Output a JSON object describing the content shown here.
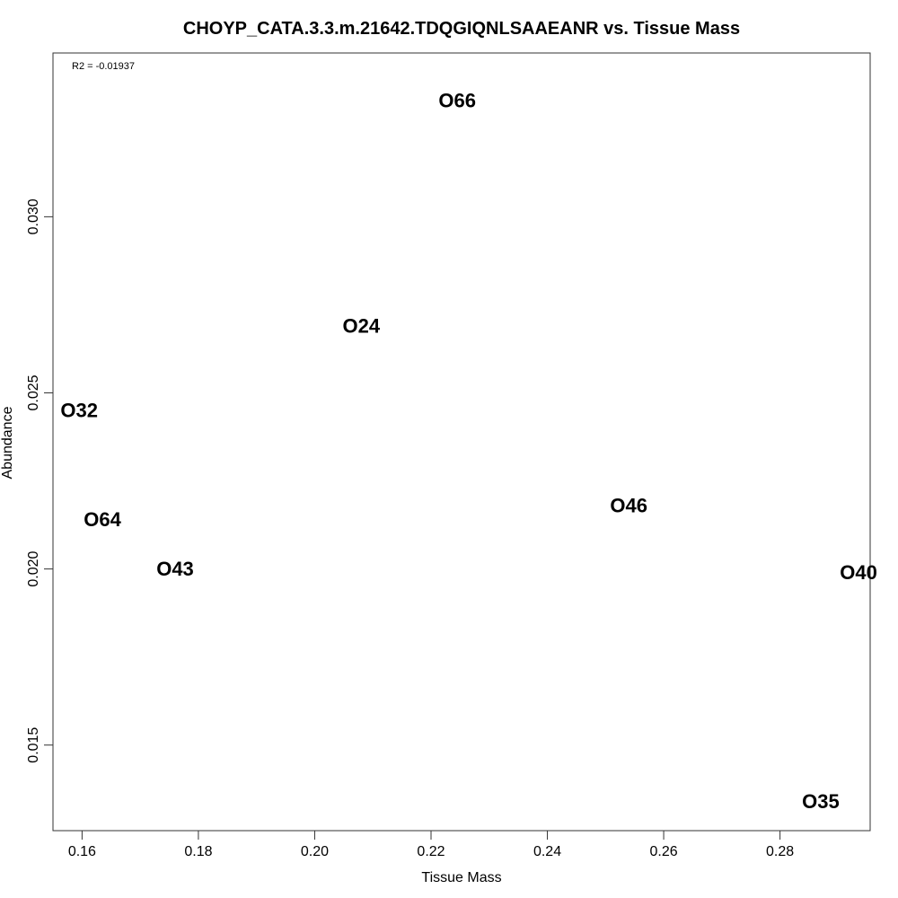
{
  "chart_data": {
    "type": "scatter",
    "title": "CHOYP_CATA.3.3.m.21642.TDQGIQNLSAAEANR vs. Tissue Mass",
    "xlabel": "Tissue Mass",
    "ylabel": "Abundance",
    "annotation": "R2 = -0.01937",
    "xlim": [
      0.155,
      0.2955
    ],
    "ylim": [
      0.01257,
      0.03465
    ],
    "xticks": [
      0.16,
      0.18,
      0.2,
      0.22,
      0.24,
      0.26,
      0.28
    ],
    "xtick_labels": [
      "0.16",
      "0.18",
      "0.20",
      "0.22",
      "0.24",
      "0.26",
      "0.28"
    ],
    "yticks": [
      0.015,
      0.02,
      0.025,
      0.03
    ],
    "ytick_labels": [
      "0.015",
      "0.020",
      "0.025",
      "0.030"
    ],
    "grid": false,
    "points": [
      {
        "label": "O66",
        "x": 0.2245,
        "y": 0.0333
      },
      {
        "label": "O24",
        "x": 0.208,
        "y": 0.0269
      },
      {
        "label": "O32",
        "x": 0.1595,
        "y": 0.0245
      },
      {
        "label": "O64",
        "x": 0.1635,
        "y": 0.0214
      },
      {
        "label": "O43",
        "x": 0.176,
        "y": 0.02
      },
      {
        "label": "O46",
        "x": 0.254,
        "y": 0.0218
      },
      {
        "label": "O40",
        "x": 0.2935,
        "y": 0.0199
      },
      {
        "label": "O35",
        "x": 0.287,
        "y": 0.0134
      }
    ]
  }
}
